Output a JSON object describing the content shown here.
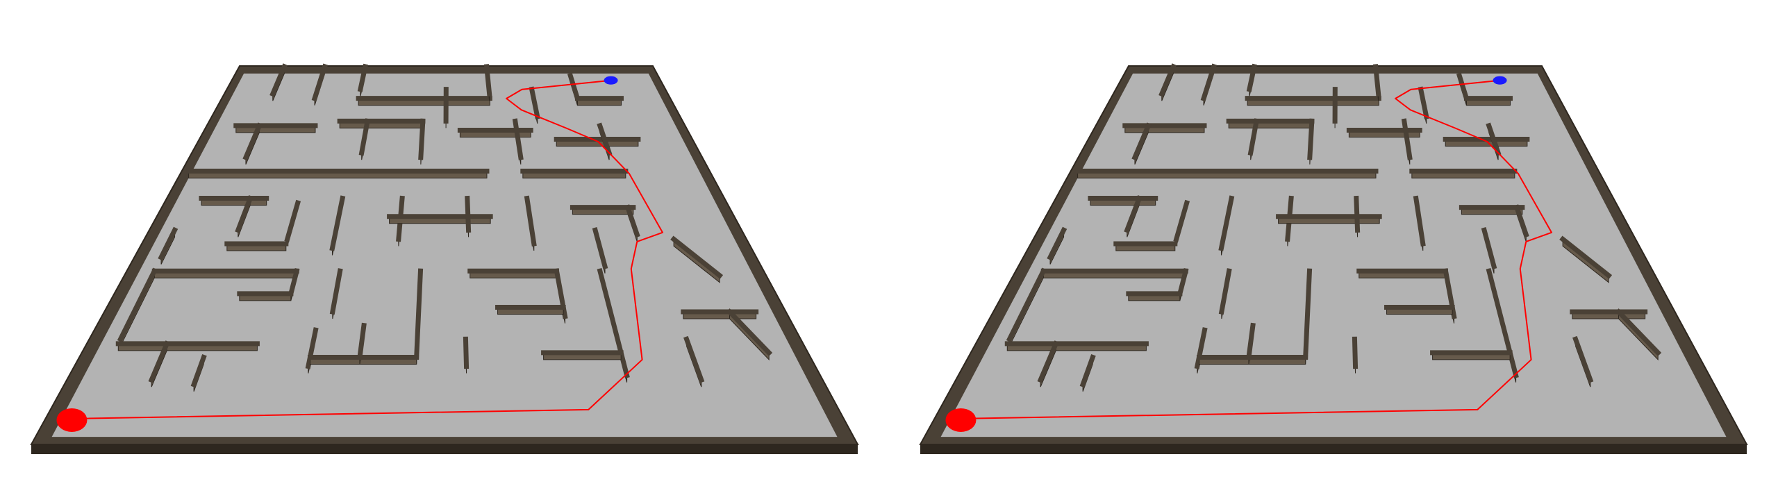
{
  "colors": {
    "background": "#ffffff",
    "floor": "#b3b3b3",
    "wall_top": "#4a4136",
    "wall_face": "#665a4b",
    "wall_edge": "#2e271f",
    "path": "#ff0000",
    "start_marker": "#ff0000",
    "goal_marker": "#1a1aff"
  },
  "icons": {
    "start": "red-start-disc",
    "goal": "blue-goal-disc"
  },
  "maze": {
    "grid_cols": 10,
    "grid_rows": 8,
    "walls": [
      [
        [
          1,
          0
        ],
        [
          1,
          0.6
        ]
      ],
      [
        [
          2,
          0
        ],
        [
          2,
          0.7
        ]
      ],
      [
        [
          3,
          0
        ],
        [
          3,
          0.5
        ]
      ],
      [
        [
          3,
          0.7
        ],
        [
          6,
          0.7
        ]
      ],
      [
        [
          5,
          0.5
        ],
        [
          5,
          1.2
        ]
      ],
      [
        [
          6,
          0
        ],
        [
          6,
          0.6
        ]
      ],
      [
        [
          7,
          0.5
        ],
        [
          7,
          1.1
        ]
      ],
      [
        [
          8,
          0.7
        ],
        [
          9,
          0.7
        ]
      ],
      [
        [
          8,
          0.2
        ],
        [
          8,
          0.7
        ]
      ],
      [
        [
          0.5,
          1.3
        ],
        [
          2.2,
          1.3
        ]
      ],
      [
        [
          2.7,
          1.2
        ],
        [
          4.5,
          1.2
        ]
      ],
      [
        [
          4.5,
          1.2
        ],
        [
          4.5,
          2
        ]
      ],
      [
        [
          5.3,
          1.4
        ],
        [
          6.8,
          1.4
        ]
      ],
      [
        [
          6.5,
          1.2
        ],
        [
          6.5,
          2
        ]
      ],
      [
        [
          7.3,
          1.6
        ],
        [
          9,
          1.6
        ]
      ],
      [
        [
          1,
          1.3
        ],
        [
          1,
          2
        ]
      ],
      [
        [
          3.3,
          1.2
        ],
        [
          3.3,
          1.9
        ]
      ],
      [
        [
          8.3,
          1.3
        ],
        [
          8.3,
          1.9
        ]
      ],
      [
        [
          0,
          2.3
        ],
        [
          5.8,
          2.3
        ]
      ],
      [
        [
          6.5,
          2.3
        ],
        [
          8.5,
          2.3
        ]
      ],
      [
        [
          0.5,
          2.9
        ],
        [
          1.7,
          2.9
        ]
      ],
      [
        [
          1.4,
          2.9
        ],
        [
          1.4,
          3.6
        ]
      ],
      [
        [
          2.3,
          3
        ],
        [
          2.3,
          3.8
        ]
      ],
      [
        [
          3.1,
          2.9
        ],
        [
          3.1,
          4
        ]
      ],
      [
        [
          4.2,
          2.9
        ],
        [
          4.2,
          3.8
        ]
      ],
      [
        [
          4,
          3.3
        ],
        [
          5.8,
          3.3
        ]
      ],
      [
        [
          5.4,
          2.9
        ],
        [
          5.4,
          3.6
        ]
      ],
      [
        [
          6.5,
          2.9
        ],
        [
          6.5,
          3.9
        ]
      ],
      [
        [
          7.3,
          3.1
        ],
        [
          8.4,
          3.1
        ]
      ],
      [
        [
          8.3,
          3.1
        ],
        [
          8.3,
          3.7
        ]
      ],
      [
        [
          0.3,
          3.6
        ],
        [
          0.3,
          4.2
        ]
      ],
      [
        [
          1.3,
          3.9
        ],
        [
          2.3,
          3.9
        ]
      ],
      [
        [
          7.6,
          3.6
        ],
        [
          7.6,
          4.4
        ]
      ],
      [
        [
          8.9,
          3.8
        ],
        [
          9.4,
          4.6
        ]
      ],
      [
        [
          0.3,
          4.5
        ],
        [
          2.6,
          4.5
        ]
      ],
      [
        [
          0.3,
          4.5
        ],
        [
          0.3,
          6
        ]
      ],
      [
        [
          2.6,
          4.5
        ],
        [
          2.6,
          5
        ]
      ],
      [
        [
          1.8,
          5
        ],
        [
          2.6,
          5
        ]
      ],
      [
        [
          3.3,
          4.5
        ],
        [
          3.3,
          5.4
        ]
      ],
      [
        [
          4.6,
          4.5
        ],
        [
          4.6,
          6.4
        ]
      ],
      [
        [
          5.4,
          4.5
        ],
        [
          6.8,
          4.5
        ]
      ],
      [
        [
          6.8,
          4.5
        ],
        [
          6.8,
          5.5
        ]
      ],
      [
        [
          5.8,
          5.3
        ],
        [
          6.8,
          5.3
        ]
      ],
      [
        [
          7.5,
          4.5
        ],
        [
          7.5,
          6.8
        ]
      ],
      [
        [
          8.6,
          5.4
        ],
        [
          9.7,
          5.4
        ]
      ],
      [
        [
          9.3,
          5.4
        ],
        [
          9.6,
          6.3
        ]
      ],
      [
        [
          0.3,
          6.1
        ],
        [
          2.3,
          6.1
        ]
      ],
      [
        [
          1,
          6.1
        ],
        [
          1,
          6.9
        ]
      ],
      [
        [
          1.6,
          6.4
        ],
        [
          1.6,
          7
        ]
      ],
      [
        [
          3.1,
          5.8
        ],
        [
          3.1,
          6.6
        ]
      ],
      [
        [
          3.1,
          6.4
        ],
        [
          4.6,
          6.4
        ]
      ],
      [
        [
          3.8,
          5.7
        ],
        [
          3.8,
          6.4
        ]
      ],
      [
        [
          5.3,
          6.0
        ],
        [
          5.3,
          6.6
        ]
      ],
      [
        [
          6.4,
          6.3
        ],
        [
          7.5,
          6.3
        ]
      ],
      [
        [
          8.5,
          6
        ],
        [
          8.5,
          6.9
        ]
      ]
    ]
  },
  "route": {
    "start": [
      0.1,
      7.6
    ],
    "goal": [
      9.0,
      0.15
    ],
    "waypoints": [
      [
        0.1,
        7.6
      ],
      [
        6.9,
        7.4
      ],
      [
        7.8,
        6.3
      ],
      [
        8.05,
        4.3
      ],
      [
        8.3,
        3.7
      ],
      [
        8.8,
        3.5
      ],
      [
        8.6,
        2.2
      ],
      [
        8.2,
        1.5
      ],
      [
        7.6,
        1.2
      ],
      [
        6.7,
        0.8
      ],
      [
        6.4,
        0.55
      ],
      [
        6.8,
        0.35
      ],
      [
        9.0,
        0.15
      ]
    ]
  }
}
